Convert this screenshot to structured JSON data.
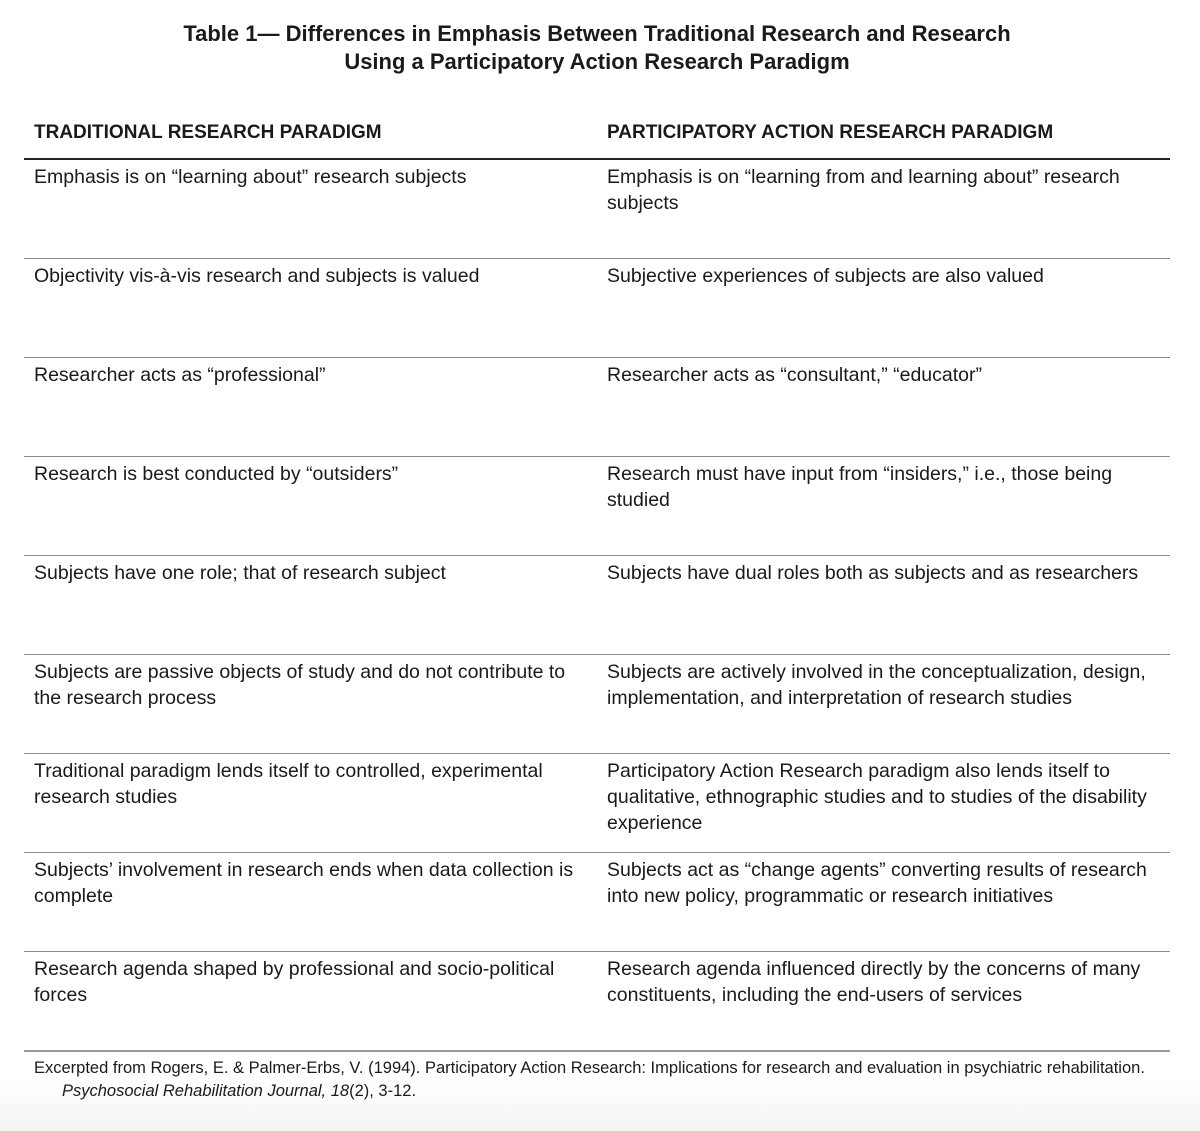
{
  "title": {
    "line1": "Table 1— Differences in Emphasis Between Traditional Research and Research",
    "line2": "Using a Participatory Action Research Paradigm"
  },
  "columns": [
    "TRADITIONAL RESEARCH PARADIGM",
    "PARTICIPATORY ACTION RESEARCH PARADIGM"
  ],
  "rows": [
    [
      "Emphasis is on “learning about” research subjects",
      "Emphasis is on “learning from and learning about” research subjects"
    ],
    [
      "Objectivity vis-à-vis research and subjects is valued",
      "Subjective experiences of subjects are also valued"
    ],
    [
      "Researcher acts as “professional”",
      "Researcher acts as “consultant,” “educator”"
    ],
    [
      "Research is best conducted by “outsiders”",
      "Research must have input from “insiders,” i.e., those being studied"
    ],
    [
      "Subjects have one role; that of research subject",
      "Subjects have dual roles both as subjects and as researchers"
    ],
    [
      "Subjects are passive objects of study and do not contribute to the research process",
      "Subjects are actively involved in the conceptualization, design, implementation, and interpretation of research studies"
    ],
    [
      "Traditional paradigm lends itself to controlled, experimental research studies",
      "Participatory Action Research paradigm also lends itself to qualitative, ethnographic studies and to studies of the disability experience"
    ],
    [
      "Subjects’ involvement in research ends when data collection is complete",
      "Subjects act as “change agents” converting results of research into new policy, programmatic or research initiatives"
    ],
    [
      "Research agenda shaped by professional and socio-political forces",
      "Research agenda influenced directly by the concerns of many constituents, including the end-users of services"
    ]
  ],
  "footer": {
    "text": "Excerpted from Rogers, E. & Palmer-Erbs, V. (1994). Participatory Action Research: Implications for research and evaluation in psychiatric rehabilitation. ",
    "journal": "Psychosocial Rehabilitation Journal, 18",
    "issue": "(2), 3-12."
  }
}
